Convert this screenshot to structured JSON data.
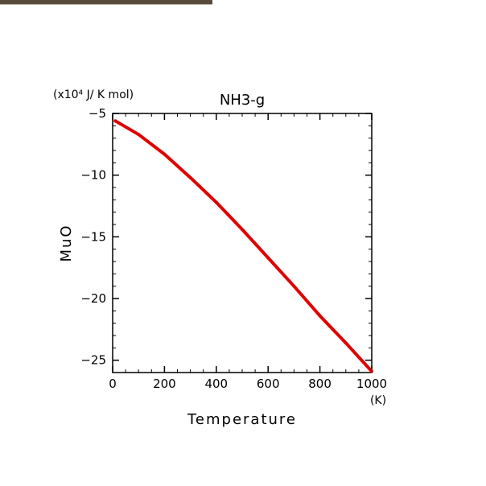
{
  "window": {
    "topbar_color": "#5a4a3a"
  },
  "chart_data": {
    "type": "line",
    "title": "NH3-g",
    "xlabel": "Temperature",
    "x_unit": "(K)",
    "ylabel": "MuO",
    "y_unit": "(x10⁴ J/ K mol)",
    "xlim": [
      0,
      1000
    ],
    "ylim": [
      -26,
      -5
    ],
    "x_ticks": [
      0,
      200,
      400,
      600,
      800,
      1000
    ],
    "x_tick_labels": [
      "0",
      "200",
      "400",
      "600",
      "800",
      "1000"
    ],
    "y_ticks": [
      -5,
      -10,
      -15,
      -20,
      -25
    ],
    "y_tick_labels": [
      "-5",
      "-10",
      "-15",
      "-20",
      "-25"
    ],
    "grid": false,
    "line_color": "#e00000",
    "series": [
      {
        "x": [
          10,
          100,
          200,
          300,
          400,
          500,
          600,
          700,
          800,
          900,
          1000
        ],
        "y": [
          -5.6,
          -6.7,
          -8.3,
          -10.2,
          -12.2,
          -14.4,
          -16.7,
          -19.0,
          -21.4,
          -23.6,
          -25.9
        ]
      }
    ]
  }
}
